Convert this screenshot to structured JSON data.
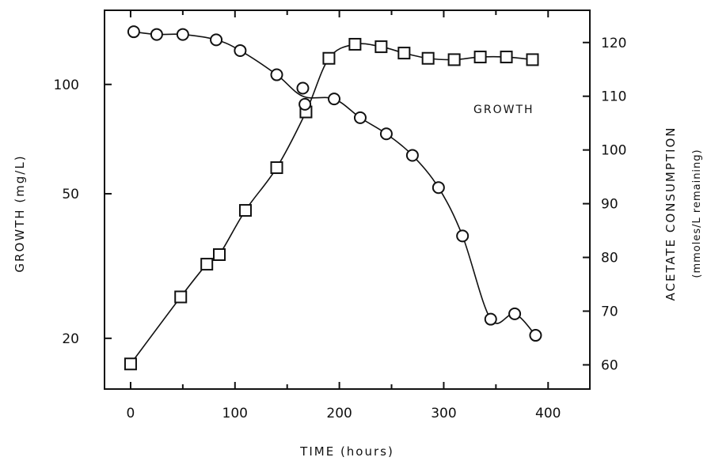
{
  "chart_data": {
    "type": "scatter",
    "x_label": "TIME (hours)",
    "left_y_label": "GROWTH (mg/L)",
    "right_y_label": "ACETATE CONSUMPTION",
    "right_y_sublabel": "(mmoles/L remaining)",
    "annotation": "GROWTH",
    "x_ticks": [
      "0",
      "100",
      "200",
      "300",
      "400"
    ],
    "left_ticks": [
      "20",
      "50",
      "100"
    ],
    "right_ticks": [
      "60",
      "70",
      "80",
      "90",
      "100",
      "110",
      "120"
    ],
    "xlim": [
      -25,
      440
    ],
    "left_scale": "log",
    "left_ylim": [
      14.5,
      160
    ],
    "right_ylim": [
      55.5,
      126
    ],
    "series": [
      {
        "marker": "square",
        "axis": "left",
        "points": [
          [
            0,
            17
          ],
          [
            48,
            26
          ],
          [
            73,
            32
          ],
          [
            85,
            34
          ],
          [
            110,
            45
          ],
          [
            140,
            59
          ],
          [
            168,
            84
          ],
          [
            190,
            118
          ],
          [
            215,
            129
          ],
          [
            240,
            127
          ],
          [
            262,
            122
          ],
          [
            285,
            118
          ],
          [
            310,
            117
          ],
          [
            335,
            119
          ],
          [
            360,
            119
          ],
          [
            385,
            117
          ]
        ]
      },
      {
        "marker": "circle",
        "axis": "right",
        "points": [
          [
            3,
            122
          ],
          [
            25,
            121.5
          ],
          [
            50,
            121.5
          ],
          [
            82,
            120.5
          ],
          [
            105,
            118.5
          ],
          [
            140,
            114
          ],
          [
            165,
            111.5
          ],
          [
            167,
            108.5
          ],
          [
            195,
            109.5
          ],
          [
            220,
            106
          ],
          [
            245,
            103
          ],
          [
            270,
            99
          ],
          [
            295,
            93
          ],
          [
            318,
            84
          ],
          [
            345,
            68.5
          ],
          [
            368,
            69.5
          ],
          [
            388,
            65.5
          ]
        ]
      }
    ]
  }
}
